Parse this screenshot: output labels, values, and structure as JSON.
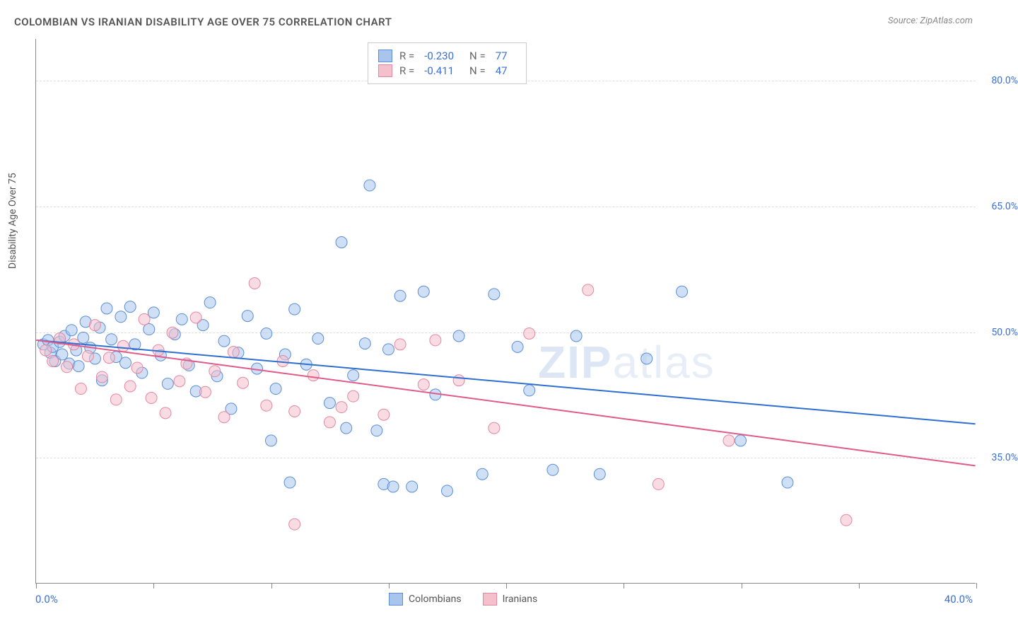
{
  "title": "COLOMBIAN VS IRANIAN DISABILITY AGE OVER 75 CORRELATION CHART",
  "source": "Source: ZipAtlas.com",
  "y_axis_title": "Disability Age Over 75",
  "watermark_bold": "ZIP",
  "watermark_light": "atlas",
  "chart": {
    "type": "scatter",
    "background_color": "#ffffff",
    "grid_color": "#dddddd",
    "axis_color": "#888888",
    "xlim": [
      0,
      40
    ],
    "ylim": [
      20,
      85
    ],
    "x_ticks": [
      0,
      5,
      10,
      15,
      20,
      25,
      30,
      35,
      40
    ],
    "y_ticks": [
      35,
      50,
      65,
      80
    ],
    "x_label_min": "0.0%",
    "x_label_max": "40.0%",
    "y_tick_labels": [
      "35.0%",
      "50.0%",
      "65.0%",
      "80.0%"
    ],
    "marker_radius": 8,
    "marker_opacity": 0.55,
    "line_width": 2,
    "series": [
      {
        "name": "Colombians",
        "color_fill": "#a8c5ec",
        "color_stroke": "#5a8ed6",
        "line_color": "#2f6fd0",
        "R": "-0.230",
        "N": "77",
        "trend": {
          "x1": 0,
          "y1": 49,
          "x2": 40,
          "y2": 39
        },
        "points": [
          [
            0.3,
            48.5
          ],
          [
            0.5,
            49
          ],
          [
            0.6,
            47.5
          ],
          [
            0.7,
            48.2
          ],
          [
            0.8,
            46.5
          ],
          [
            1.0,
            48.8
          ],
          [
            1.1,
            47.3
          ],
          [
            1.2,
            49.5
          ],
          [
            1.4,
            46.2
          ],
          [
            1.5,
            50.2
          ],
          [
            1.7,
            47.8
          ],
          [
            1.8,
            45.9
          ],
          [
            2.0,
            49.3
          ],
          [
            2.1,
            51.2
          ],
          [
            2.3,
            48.1
          ],
          [
            2.5,
            46.8
          ],
          [
            2.7,
            50.5
          ],
          [
            2.8,
            44.2
          ],
          [
            3.0,
            52.8
          ],
          [
            3.2,
            49.1
          ],
          [
            3.4,
            47.0
          ],
          [
            3.6,
            51.8
          ],
          [
            3.8,
            46.3
          ],
          [
            4.0,
            53.0
          ],
          [
            4.2,
            48.5
          ],
          [
            4.5,
            45.1
          ],
          [
            4.8,
            50.3
          ],
          [
            5.0,
            52.3
          ],
          [
            5.3,
            47.2
          ],
          [
            5.6,
            43.8
          ],
          [
            5.9,
            49.7
          ],
          [
            6.2,
            51.5
          ],
          [
            6.5,
            46.0
          ],
          [
            6.8,
            42.9
          ],
          [
            7.1,
            50.8
          ],
          [
            7.4,
            53.5
          ],
          [
            7.7,
            44.7
          ],
          [
            8.0,
            48.9
          ],
          [
            8.3,
            40.8
          ],
          [
            8.6,
            47.5
          ],
          [
            9.0,
            51.9
          ],
          [
            9.4,
            45.6
          ],
          [
            9.8,
            49.8
          ],
          [
            10.2,
            43.2
          ],
          [
            10.6,
            47.3
          ],
          [
            11.0,
            52.7
          ],
          [
            11.5,
            46.1
          ],
          [
            12.0,
            49.2
          ],
          [
            12.5,
            41.5
          ],
          [
            13.0,
            60.7
          ],
          [
            13.5,
            44.8
          ],
          [
            14.0,
            48.6
          ],
          [
            14.2,
            67.5
          ],
          [
            14.5,
            38.2
          ],
          [
            15.0,
            47.9
          ],
          [
            15.5,
            54.3
          ],
          [
            16.0,
            31.5
          ],
          [
            16.5,
            54.8
          ],
          [
            17.0,
            42.5
          ],
          [
            17.5,
            31.0
          ],
          [
            18.0,
            49.5
          ],
          [
            14.8,
            31.8
          ],
          [
            15.2,
            31.5
          ],
          [
            19.0,
            33.0
          ],
          [
            19.5,
            54.5
          ],
          [
            20.5,
            48.2
          ],
          [
            21.0,
            43.0
          ],
          [
            22.0,
            33.5
          ],
          [
            23.0,
            49.5
          ],
          [
            24.0,
            33.0
          ],
          [
            26.0,
            46.8
          ],
          [
            27.5,
            54.8
          ],
          [
            30.0,
            37.0
          ],
          [
            32.0,
            32.0
          ],
          [
            10.0,
            37.0
          ],
          [
            10.8,
            32.0
          ],
          [
            13.2,
            38.5
          ]
        ]
      },
      {
        "name": "Iranians",
        "color_fill": "#f4c0cc",
        "color_stroke": "#e586a0",
        "line_color": "#e05a8a",
        "R": "-0.411",
        "N": "47",
        "trend": {
          "x1": 0,
          "y1": 49,
          "x2": 40,
          "y2": 34
        },
        "points": [
          [
            0.4,
            47.8
          ],
          [
            0.7,
            46.5
          ],
          [
            1.0,
            49.2
          ],
          [
            1.3,
            45.8
          ],
          [
            1.6,
            48.5
          ],
          [
            1.9,
            43.2
          ],
          [
            2.2,
            47.1
          ],
          [
            2.5,
            50.8
          ],
          [
            2.8,
            44.6
          ],
          [
            3.1,
            46.9
          ],
          [
            3.4,
            41.9
          ],
          [
            3.7,
            48.3
          ],
          [
            4.0,
            43.5
          ],
          [
            4.3,
            45.7
          ],
          [
            4.6,
            51.5
          ],
          [
            4.9,
            42.1
          ],
          [
            5.2,
            47.8
          ],
          [
            5.5,
            40.3
          ],
          [
            5.8,
            49.9
          ],
          [
            6.1,
            44.1
          ],
          [
            6.4,
            46.2
          ],
          [
            6.8,
            51.7
          ],
          [
            7.2,
            42.8
          ],
          [
            7.6,
            45.3
          ],
          [
            8.0,
            39.8
          ],
          [
            8.4,
            47.6
          ],
          [
            8.8,
            43.9
          ],
          [
            9.3,
            55.8
          ],
          [
            9.8,
            41.2
          ],
          [
            10.5,
            46.5
          ],
          [
            11.0,
            40.5
          ],
          [
            11.8,
            44.8
          ],
          [
            12.5,
            39.2
          ],
          [
            13.5,
            42.3
          ],
          [
            14.8,
            40.1
          ],
          [
            15.5,
            48.5
          ],
          [
            16.5,
            43.7
          ],
          [
            13.0,
            41.0
          ],
          [
            11.0,
            27.0
          ],
          [
            18.0,
            44.2
          ],
          [
            19.5,
            38.5
          ],
          [
            21.0,
            49.8
          ],
          [
            23.5,
            55.0
          ],
          [
            26.5,
            31.8
          ],
          [
            29.5,
            37.0
          ],
          [
            34.5,
            27.5
          ],
          [
            17.0,
            49.0
          ]
        ]
      }
    ]
  },
  "legend_bottom": [
    {
      "label": "Colombians",
      "fill": "#a8c5ec",
      "stroke": "#5a8ed6"
    },
    {
      "label": "Iranians",
      "fill": "#f4c0cc",
      "stroke": "#e586a0"
    }
  ]
}
